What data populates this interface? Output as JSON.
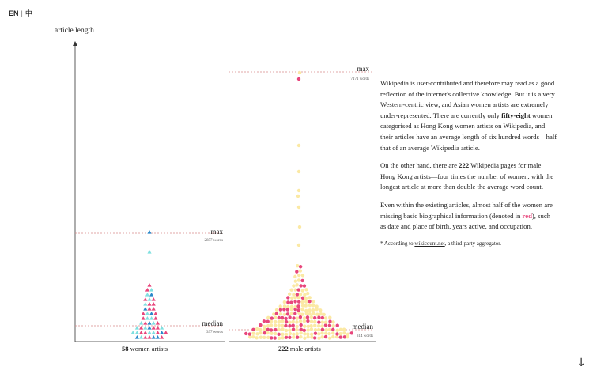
{
  "language_switch": {
    "en": "EN",
    "separator": "|",
    "zh": "中"
  },
  "chart_data": {
    "type": "scatter",
    "ylabel": "article length",
    "groups": [
      {
        "name": "women artists",
        "count": "58",
        "caption_suffix": "women artists",
        "max_label": "max",
        "max_value": "2857 words",
        "median_label": "median",
        "median_value": "397 words"
      },
      {
        "name": "male artists",
        "count": "222",
        "caption_suffix": "male artists",
        "max_label": "max",
        "max_value": "7171 words",
        "median_label": "median",
        "median_value": "314 words"
      }
    ],
    "colors": {
      "women_complete": "#7fe0e0",
      "women_missing": "#e8467c",
      "women_blue": "#2a88c9",
      "men_complete": "#fbe9a4",
      "men_missing": "#e8467c"
    }
  },
  "article": {
    "p1_a": "Wikipedia is user-contributed and therefore may read as a good reflection of the internet's collective knowledge. But it is a very Western-centric view, and Asian women artists are extremely under-represented. There are currently only ",
    "p1_bold": "fifty-eight",
    "p1_b": " women categorised as Hong Kong women artists on Wikipedia, and their articles have an average length of six hundred words—half that of an average Wikipedia article.",
    "p2_a": "On the other hand, there are ",
    "p2_bold": "222",
    "p2_b": " Wikipedia pages for male Hong Kong artists—four times the number of women, with the longest article at more than double the average word count.",
    "p3_a": "Even within the existing articles, almost half of the women are missing basic biographical information (denoted in ",
    "p3_red": "red",
    "p3_b": "), such as date and place of birth, years active, and occupation.",
    "note_a": "* According to ",
    "note_link": "wikicount.net",
    "note_b": ", a third-party aggregator."
  },
  "scroll_arrow": "↓"
}
